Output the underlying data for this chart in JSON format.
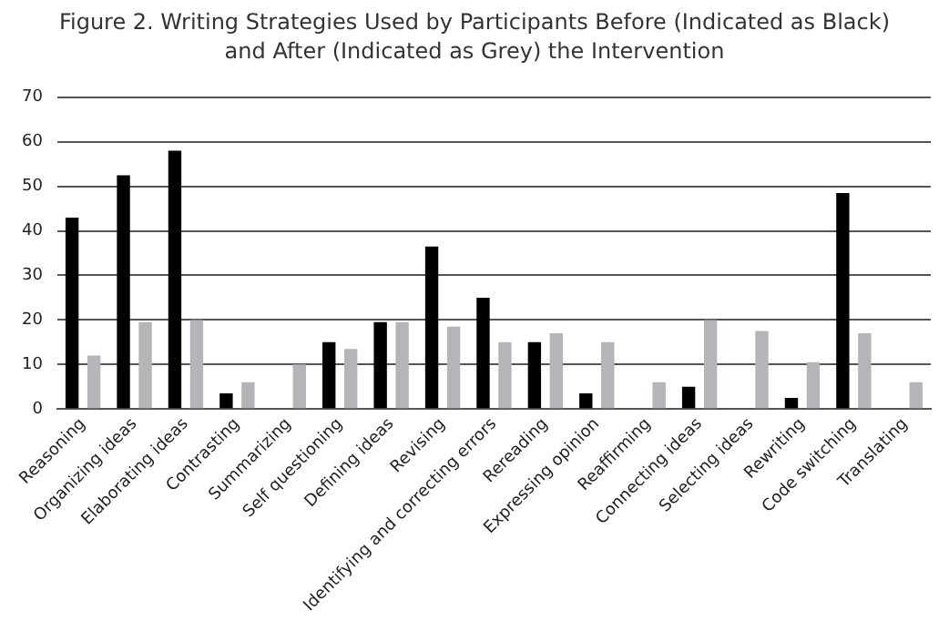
{
  "chart_data": {
    "type": "bar",
    "title": "Figure 2. Writing Strategies Used by Participants Before (Indicated as Black) and After (Indicated as Grey) the Intervention",
    "categories": [
      "Reasoning",
      "Organizing ideas",
      "Elaborating ideas",
      "Contrasting",
      "Summarizing",
      "Self questioning",
      "Defining ideas",
      "Revising",
      "Identifying and correcting errors",
      "Rereading",
      "Expressing opinion",
      "Reaffirming",
      "Connecting ideas",
      "Selecting ideas",
      "Rewriting",
      "Code switching",
      "Translating"
    ],
    "series": [
      {
        "color": "#000000",
        "values": [
          43,
          52.5,
          58,
          3.5,
          0,
          15,
          19.5,
          36.5,
          25,
          15,
          3.5,
          0,
          5,
          0,
          2.5,
          48.5,
          0
        ]
      },
      {
        "color": "#b3b5b8",
        "values": [
          12,
          19.5,
          20,
          6,
          10,
          13.5,
          19.5,
          18.5,
          15,
          17,
          15,
          6,
          20,
          17.5,
          10.5,
          17,
          6
        ]
      }
    ],
    "ylim": [
      0,
      70
    ],
    "yticks": [
      0,
      10,
      20,
      30,
      40,
      50,
      60,
      70
    ],
    "grid": "y"
  }
}
